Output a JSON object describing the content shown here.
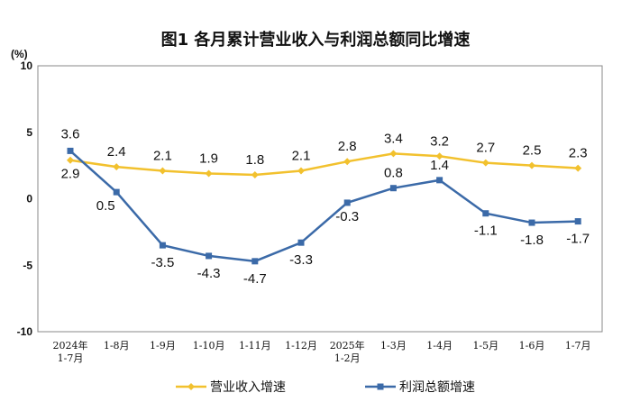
{
  "chart_data": {
    "type": "line",
    "title": "图1 各月累计营业收入与利润总额同比增速",
    "ylabel": "(%)",
    "ylim": [
      -10,
      10
    ],
    "yticks": [
      "10",
      "5",
      "0",
      "-5",
      "-10"
    ],
    "grid": false,
    "legend_position": "bottom",
    "categories": [
      [
        "2024年",
        "1-7月"
      ],
      [
        "1-8月"
      ],
      [
        "1-9月"
      ],
      [
        "1-10月"
      ],
      [
        "1-11月"
      ],
      [
        "1-12月"
      ],
      [
        "2025年",
        "1-2月"
      ],
      [
        "1-3月"
      ],
      [
        "1-4月"
      ],
      [
        "1-5月"
      ],
      [
        "1-6月"
      ],
      [
        "1-7月"
      ]
    ],
    "series": [
      {
        "name": "营业收入增速",
        "color": "#f2c12e",
        "marker": "diamond",
        "values": [
          2.9,
          2.4,
          2.1,
          1.9,
          1.8,
          2.1,
          2.8,
          3.4,
          3.2,
          2.7,
          2.5,
          2.3
        ],
        "labels": [
          "2.9",
          "2.4",
          "2.1",
          "1.9",
          "1.8",
          "2.1",
          "2.8",
          "3.4",
          "3.2",
          "2.7",
          "2.5",
          "2.3"
        ]
      },
      {
        "name": "利润总额增速",
        "color": "#3b6aa8",
        "marker": "square",
        "values": [
          3.6,
          0.5,
          -3.5,
          -4.3,
          -4.7,
          -3.3,
          -0.3,
          0.8,
          1.4,
          -1.1,
          -1.8,
          -1.7
        ],
        "labels": [
          "3.6",
          "0.5",
          "-3.5",
          "-4.3",
          "-4.7",
          "-3.3",
          "-0.3",
          "0.8",
          "1.4",
          "-1.1",
          "-1.8",
          "-1.7"
        ]
      }
    ]
  }
}
